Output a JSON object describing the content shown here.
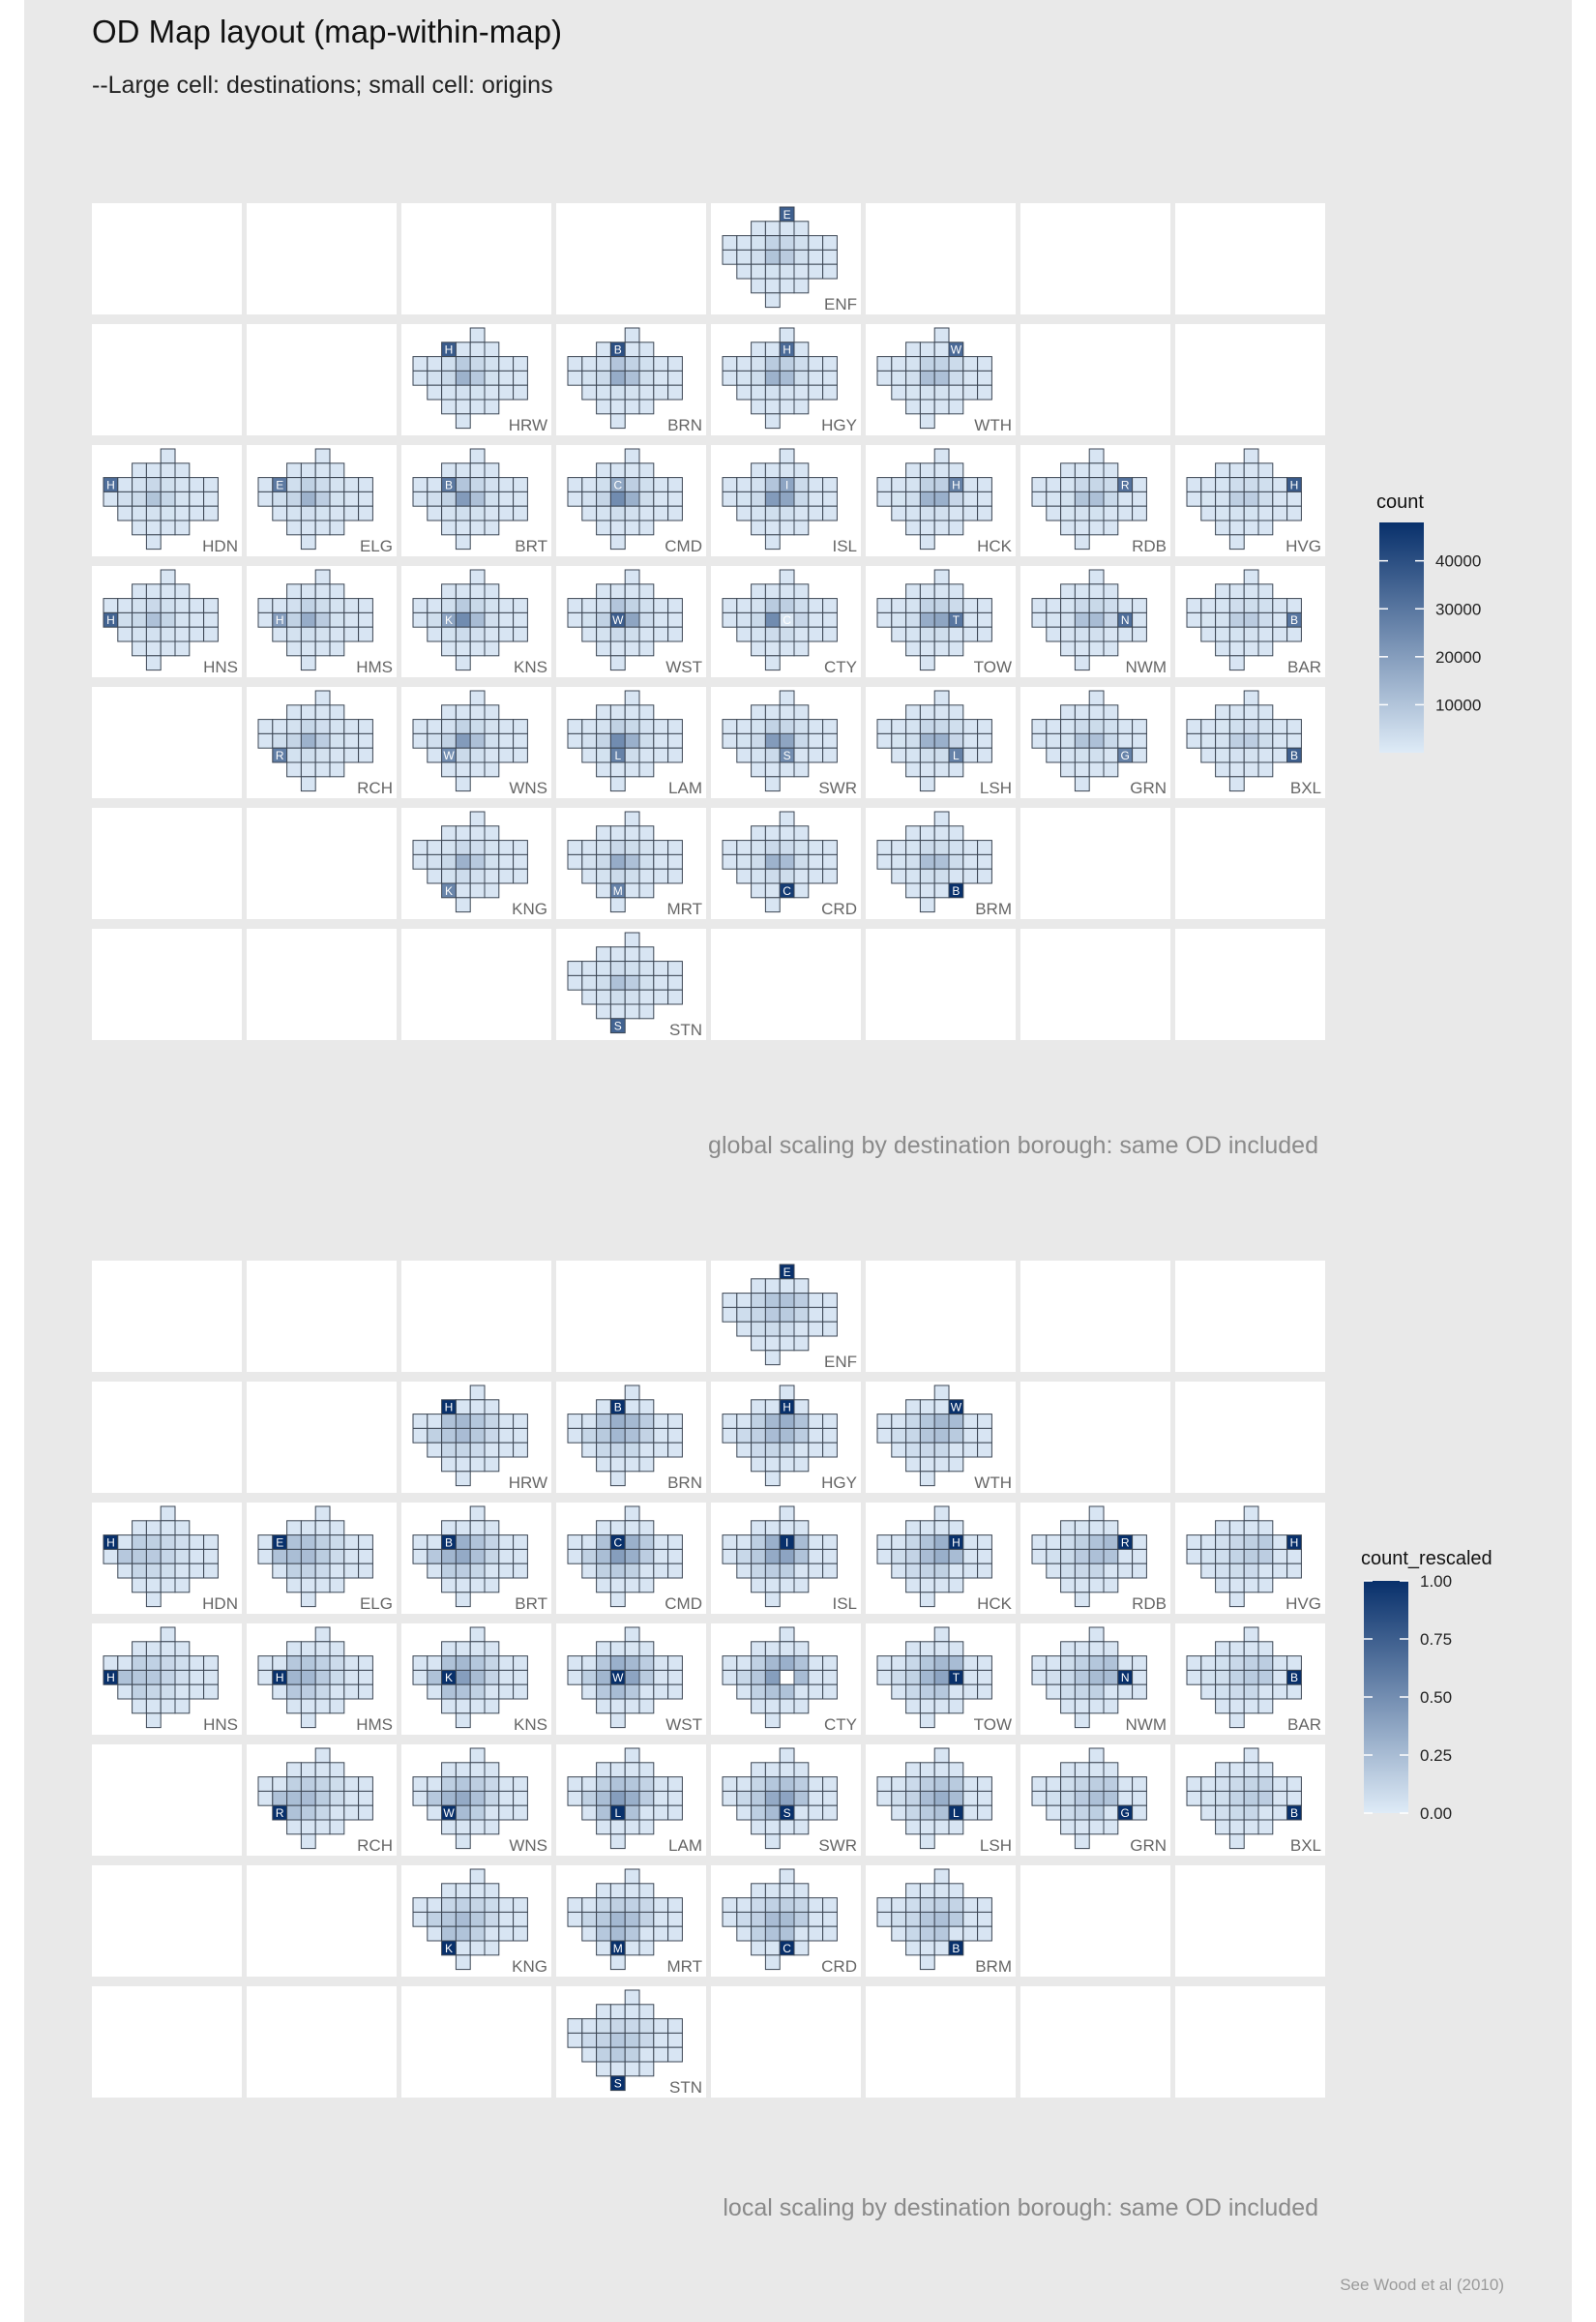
{
  "title": "OD Map layout (map-within-map)",
  "subtitle": "--Large cell: destinations; small cell: origins",
  "credit": "See Wood et al (2010)",
  "colors": {
    "panel_bg": "#e9e9e9",
    "cell_bg": "#ffffff",
    "grid_line": "#e9e9e9",
    "tile_stroke": "#3c4654",
    "low": "#deebf7",
    "high": "#08306b"
  },
  "boroughs": [
    {
      "code": "ENF",
      "letter": "E",
      "col": 5,
      "row": 1
    },
    {
      "code": "HRW",
      "letter": "H",
      "col": 3,
      "row": 2
    },
    {
      "code": "BRN",
      "letter": "B",
      "col": 4,
      "row": 2
    },
    {
      "code": "HGY",
      "letter": "H",
      "col": 5,
      "row": 2
    },
    {
      "code": "WTH",
      "letter": "W",
      "col": 6,
      "row": 2
    },
    {
      "code": "HDN",
      "letter": "H",
      "col": 1,
      "row": 3
    },
    {
      "code": "ELG",
      "letter": "E",
      "col": 2,
      "row": 3
    },
    {
      "code": "BRT",
      "letter": "B",
      "col": 3,
      "row": 3
    },
    {
      "code": "CMD",
      "letter": "C",
      "col": 4,
      "row": 3
    },
    {
      "code": "ISL",
      "letter": "I",
      "col": 5,
      "row": 3
    },
    {
      "code": "HCK",
      "letter": "H",
      "col": 6,
      "row": 3
    },
    {
      "code": "RDB",
      "letter": "R",
      "col": 7,
      "row": 3
    },
    {
      "code": "HVG",
      "letter": "H",
      "col": 8,
      "row": 3
    },
    {
      "code": "HNS",
      "letter": "H",
      "col": 1,
      "row": 4
    },
    {
      "code": "HMS",
      "letter": "H",
      "col": 2,
      "row": 4
    },
    {
      "code": "KNS",
      "letter": "K",
      "col": 3,
      "row": 4
    },
    {
      "code": "WST",
      "letter": "W",
      "col": 4,
      "row": 4
    },
    {
      "code": "CTY",
      "letter": "C",
      "col": 5,
      "row": 4
    },
    {
      "code": "TOW",
      "letter": "T",
      "col": 6,
      "row": 4
    },
    {
      "code": "NWM",
      "letter": "N",
      "col": 7,
      "row": 4
    },
    {
      "code": "BAR",
      "letter": "B",
      "col": 8,
      "row": 4
    },
    {
      "code": "RCH",
      "letter": "R",
      "col": 2,
      "row": 5
    },
    {
      "code": "WNS",
      "letter": "W",
      "col": 3,
      "row": 5
    },
    {
      "code": "LAM",
      "letter": "L",
      "col": 4,
      "row": 5
    },
    {
      "code": "SWR",
      "letter": "S",
      "col": 5,
      "row": 5
    },
    {
      "code": "LSH",
      "letter": "L",
      "col": 6,
      "row": 5
    },
    {
      "code": "GRN",
      "letter": "G",
      "col": 7,
      "row": 5
    },
    {
      "code": "BXL",
      "letter": "B",
      "col": 8,
      "row": 5
    },
    {
      "code": "KNG",
      "letter": "K",
      "col": 3,
      "row": 6
    },
    {
      "code": "MRT",
      "letter": "M",
      "col": 4,
      "row": 6
    },
    {
      "code": "CRD",
      "letter": "C",
      "col": 5,
      "row": 6
    },
    {
      "code": "BRM",
      "letter": "B",
      "col": 6,
      "row": 6
    },
    {
      "code": "STN",
      "letter": "S",
      "col": 4,
      "row": 7
    }
  ],
  "chart_data": [
    {
      "type": "heatmap",
      "caption": "global scaling by destination borough: same OD included",
      "legend": {
        "title": "count",
        "min": 0,
        "max": 48000,
        "ticks": [
          {
            "value": 10000,
            "label": "10000"
          },
          {
            "value": 20000,
            "label": "20000"
          },
          {
            "value": 30000,
            "label": "30000"
          },
          {
            "value": 40000,
            "label": "40000"
          }
        ]
      },
      "grid": {
        "cols": 8,
        "rows": 7
      },
      "hubs": {
        "WST": 36000,
        "CTY": 26000,
        "CMD": 13000,
        "ISL": 9000,
        "KNS": 8000,
        "TOW": 6000,
        "HCK": 4000,
        "SWR": 3500,
        "LAM": 4500,
        "BRT": 2500,
        "HMS": 3000,
        "WNS": 1500
      },
      "self_values": {
        "ENF": 36000,
        "HRW": 37000,
        "BRN": 40000,
        "HGY": 33000,
        "WTH": 33000,
        "HDN": 32000,
        "ELG": 29000,
        "BRT": 29000,
        "CMD": 17000,
        "ISL": 18000,
        "HCK": 27000,
        "RDB": 31000,
        "HVG": 37000,
        "HNS": 35000,
        "HMS": 20000,
        "KNS": 18000,
        "WST": 36000,
        "CTY": 1000,
        "TOW": 30000,
        "NWM": 32000,
        "BAR": 30000,
        "RCH": 28000,
        "WNS": 24000,
        "LAM": 27000,
        "SWR": 24000,
        "LSH": 27000,
        "GRN": 27000,
        "BXL": 36000,
        "KNG": 26000,
        "MRT": 27000,
        "CRD": 45000,
        "BRM": 48000,
        "STN": 35000
      }
    },
    {
      "type": "heatmap",
      "caption": "local scaling by destination borough: same OD included",
      "legend": {
        "title": "count_rescaled",
        "min": 0,
        "max": 1,
        "ticks": [
          {
            "value": 0,
            "label": "0.00"
          },
          {
            "value": 0.25,
            "label": "0.25"
          },
          {
            "value": 0.5,
            "label": "0.50"
          },
          {
            "value": 0.75,
            "label": "0.75"
          },
          {
            "value": 1,
            "label": "1.00"
          }
        ]
      },
      "grid": {
        "cols": 8,
        "rows": 7
      },
      "hubs": {
        "WST": 0.6,
        "CTY": 0.55,
        "CMD": 0.45,
        "ISL": 0.45,
        "KNS": 0.4,
        "TOW": 0.35,
        "HCK": 0.35,
        "LAM": 0.35,
        "SWR": 0.3,
        "BRT": 0.3,
        "HMS": 0.3,
        "WNS": 0.3
      },
      "self_values": {
        "ENF": 1,
        "HRW": 1,
        "BRN": 1,
        "HGY": 1,
        "WTH": 1,
        "HDN": 1,
        "ELG": 1,
        "BRT": 1,
        "CMD": 1,
        "ISL": 1,
        "HCK": 1,
        "RDB": 1,
        "HVG": 1,
        "HNS": 1,
        "HMS": 1,
        "KNS": 1,
        "WST": 1,
        "CTY": 0,
        "TOW": 1,
        "NWM": 1,
        "BAR": 1,
        "RCH": 1,
        "WNS": 1,
        "LAM": 1,
        "SWR": 1,
        "LSH": 1,
        "GRN": 1,
        "BXL": 1,
        "KNG": 1,
        "MRT": 1,
        "CRD": 1,
        "BRM": 1,
        "STN": 1
      }
    }
  ]
}
